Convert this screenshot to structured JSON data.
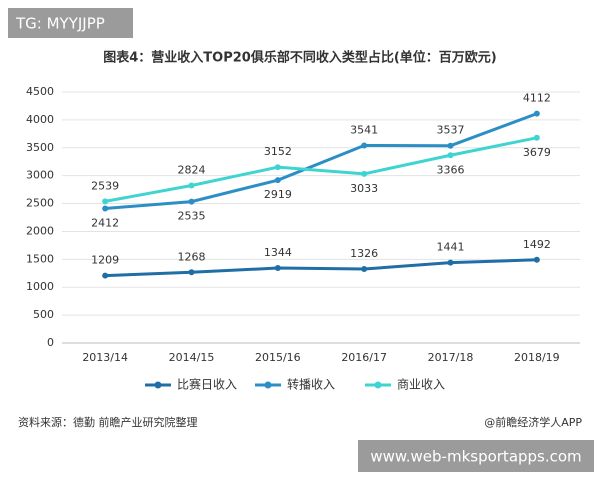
{
  "chart_data": {
    "type": "line",
    "title": "图表4：营业收入TOP20俱乐部不同收入类型占比(单位：百万欧元)",
    "categories": [
      "2013/14",
      "2014/15",
      "2015/16",
      "2016/17",
      "2017/18",
      "2018/19"
    ],
    "series": [
      {
        "name": "比赛日收入",
        "color": "#1f6ea6",
        "values": [
          1209,
          1268,
          1344,
          1326,
          1441,
          1492
        ]
      },
      {
        "name": "转播收入",
        "color": "#2b8fc6",
        "values": [
          2412,
          2535,
          2919,
          3541,
          3537,
          4112
        ]
      },
      {
        "name": "商业收入",
        "color": "#3fd4cf",
        "values": [
          2539,
          2824,
          3152,
          3033,
          3366,
          3679
        ]
      }
    ],
    "ylim": [
      0,
      4500
    ],
    "yticks": [
      0,
      500,
      1000,
      1500,
      2000,
      2500,
      3000,
      3500,
      4000,
      4500
    ],
    "grid": true,
    "legend": "bottom",
    "source": "资料来源：德勤 前瞻产业研究院整理",
    "credit": "@前瞻经济学人APP"
  },
  "overlay": {
    "top_left": "TG: MYYJJPP",
    "bottom_right": "www.web-mksportapps.com"
  }
}
